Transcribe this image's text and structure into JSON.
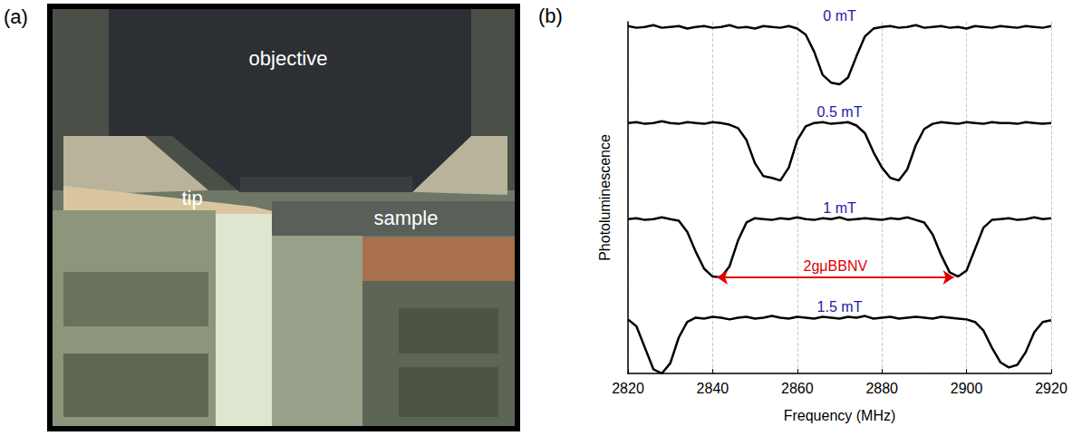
{
  "panel_a": {
    "panel_label": "(a)",
    "labels": {
      "objective": "objective",
      "tip": "tip",
      "sample": "sample"
    }
  },
  "chart_data": {
    "type": "line",
    "panel_label": "(b)",
    "x_label": "Frequency (MHz)",
    "y_label": "Photoluminescence",
    "xlim": [
      2820,
      2920
    ],
    "xticks": [
      2820,
      2840,
      2860,
      2880,
      2900,
      2920
    ],
    "ylim": [
      0,
      4.1
    ],
    "grid": true,
    "tick_labels": "x",
    "x": [
      2820,
      2822,
      2824,
      2826,
      2828,
      2830,
      2832,
      2834,
      2836,
      2838,
      2840,
      2842,
      2844,
      2846,
      2848,
      2850,
      2852,
      2854,
      2856,
      2858,
      2860,
      2862,
      2864,
      2866,
      2868,
      2870,
      2872,
      2874,
      2876,
      2878,
      2880,
      2882,
      2884,
      2886,
      2888,
      2890,
      2892,
      2894,
      2896,
      2898,
      2900,
      2902,
      2904,
      2906,
      2908,
      2910,
      2912,
      2914,
      2916,
      2918,
      2920
    ],
    "series": [
      {
        "name": "0 mT",
        "color": "#000000",
        "values": [
          4.05,
          4.03,
          4.04,
          4.06,
          4.03,
          4.04,
          4.05,
          4.02,
          4.04,
          4.05,
          4.03,
          4.04,
          4.06,
          4.03,
          4.04,
          4.02,
          4.05,
          4.04,
          4.03,
          4.05,
          4.02,
          3.95,
          3.75,
          3.48,
          3.39,
          3.37,
          3.45,
          3.7,
          3.93,
          4.02,
          4.04,
          4.05,
          4.03,
          4.04,
          4.06,
          4.03,
          4.04,
          4.05,
          4.03,
          4.04,
          4.02,
          4.05,
          4.04,
          4.03,
          4.05,
          4.04,
          4.03,
          4.05,
          4.04,
          4.03,
          4.05
        ]
      },
      {
        "name": "0.5 mT",
        "color": "#000000",
        "values": [
          2.92,
          2.93,
          2.91,
          2.92,
          2.94,
          2.92,
          2.91,
          2.93,
          2.92,
          2.91,
          2.93,
          2.92,
          2.9,
          2.86,
          2.72,
          2.45,
          2.3,
          2.28,
          2.25,
          2.4,
          2.72,
          2.88,
          2.92,
          2.93,
          2.91,
          2.92,
          2.93,
          2.89,
          2.8,
          2.58,
          2.4,
          2.28,
          2.25,
          2.38,
          2.66,
          2.85,
          2.91,
          2.93,
          2.92,
          2.91,
          2.93,
          2.92,
          2.91,
          2.93,
          2.92,
          2.92,
          2.91,
          2.93,
          2.92,
          2.91,
          2.92
        ]
      },
      {
        "name": "1 mT",
        "color": "#000000",
        "values": [
          1.8,
          1.81,
          1.79,
          1.8,
          1.82,
          1.8,
          1.78,
          1.65,
          1.42,
          1.22,
          1.13,
          1.12,
          1.25,
          1.55,
          1.76,
          1.81,
          1.8,
          1.79,
          1.81,
          1.8,
          1.82,
          1.8,
          1.79,
          1.81,
          1.8,
          1.82,
          1.79,
          1.8,
          1.81,
          1.8,
          1.79,
          1.81,
          1.8,
          1.82,
          1.79,
          1.76,
          1.62,
          1.38,
          1.18,
          1.13,
          1.2,
          1.45,
          1.7,
          1.79,
          1.8,
          1.81,
          1.79,
          1.8,
          1.82,
          1.8,
          1.81
        ]
      },
      {
        "name": "1.5 mT",
        "color": "#000000",
        "values": [
          0.63,
          0.55,
          0.3,
          0.05,
          0.0,
          0.12,
          0.42,
          0.6,
          0.65,
          0.64,
          0.66,
          0.65,
          0.63,
          0.65,
          0.66,
          0.64,
          0.65,
          0.67,
          0.65,
          0.64,
          0.66,
          0.65,
          0.64,
          0.66,
          0.65,
          0.64,
          0.66,
          0.65,
          0.67,
          0.64,
          0.65,
          0.66,
          0.64,
          0.65,
          0.66,
          0.65,
          0.64,
          0.66,
          0.65,
          0.64,
          0.63,
          0.6,
          0.5,
          0.3,
          0.13,
          0.07,
          0.1,
          0.25,
          0.48,
          0.6,
          0.62
        ]
      }
    ],
    "annotation": {
      "text": "2gμBBNV",
      "series": "1 mT",
      "x": [
        2841,
        2897
      ],
      "color": "#e00000"
    }
  }
}
